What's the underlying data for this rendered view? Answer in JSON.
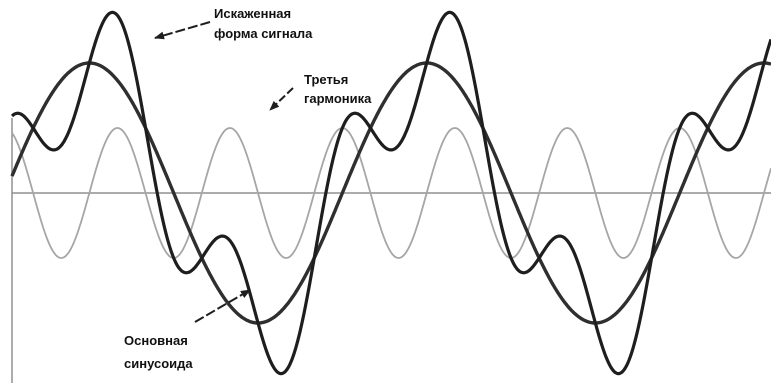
{
  "labels": {
    "distorted_line1": "Искаженная",
    "distorted_line2": "форма сигнала",
    "third_line1": "Третья",
    "third_line2": "гармоника",
    "fundamental_line1": "Основная",
    "fundamental_line2": "синусоида"
  },
  "colors": {
    "background": "#ffffff",
    "axis": "#909090",
    "third_harmonic": "#a6a6a6",
    "fundamental": "#2f2f2f",
    "distorted": "#1e1e1e",
    "label_text": "#111111"
  },
  "waves": {
    "fundamental_amplitude": 1.0,
    "third_harmonic_amplitude": 0.5,
    "periods_shown": 2.25
  }
}
